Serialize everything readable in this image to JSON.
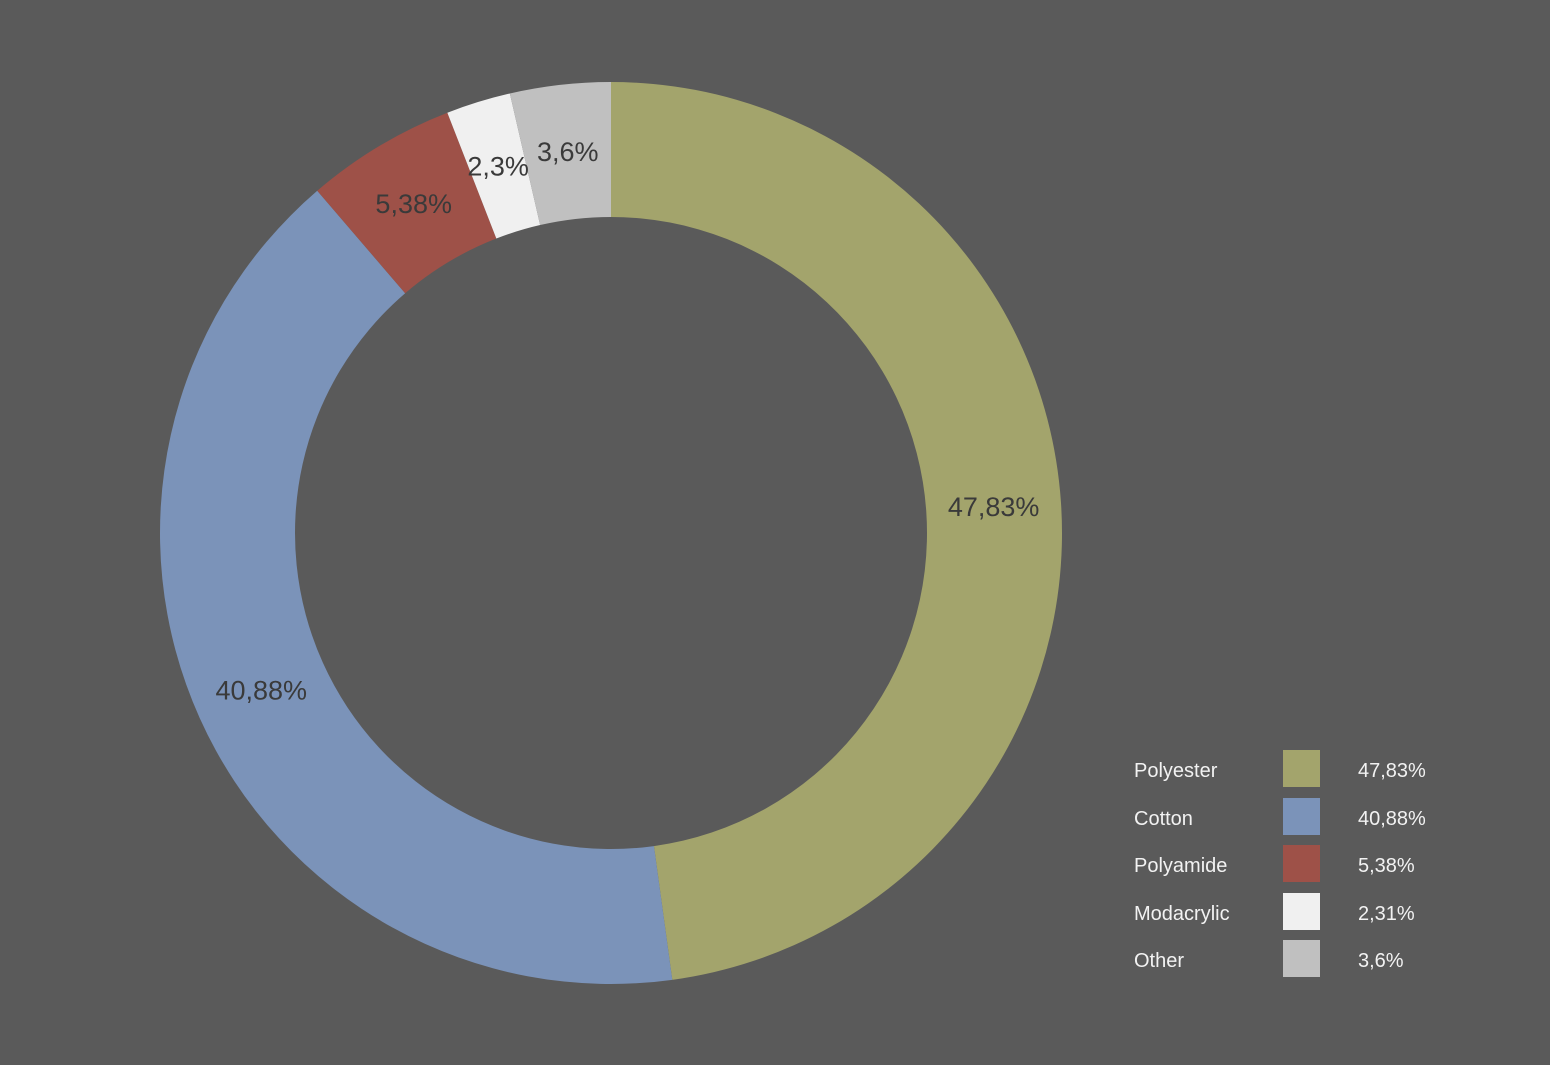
{
  "chart_data": {
    "type": "pie",
    "variant": "donut",
    "start_angle_deg": 0,
    "direction": "clockwise",
    "background": "#5a5a5a",
    "slices": [
      {
        "name": "Polyester",
        "value": 47.83,
        "label": "47,83%",
        "legend_value": "47,83%",
        "color": "#a3a46c"
      },
      {
        "name": "Cotton",
        "value": 40.88,
        "label": "40,88%",
        "legend_value": "40,88%",
        "color": "#7b93b9"
      },
      {
        "name": "Polyamide",
        "value": 5.38,
        "label": "5,38%",
        "legend_value": "5,38%",
        "color": "#9e5148"
      },
      {
        "name": "Modacrylic",
        "value": 2.31,
        "label": "2,3%",
        "legend_value": "2,31%",
        "color": "#f0f0f0"
      },
      {
        "name": "Other",
        "value": 3.6,
        "label": "3,6%",
        "legend_value": "3,6%",
        "color": "#c0c0c0"
      }
    ],
    "legend_position": "bottom-right",
    "title": ""
  }
}
